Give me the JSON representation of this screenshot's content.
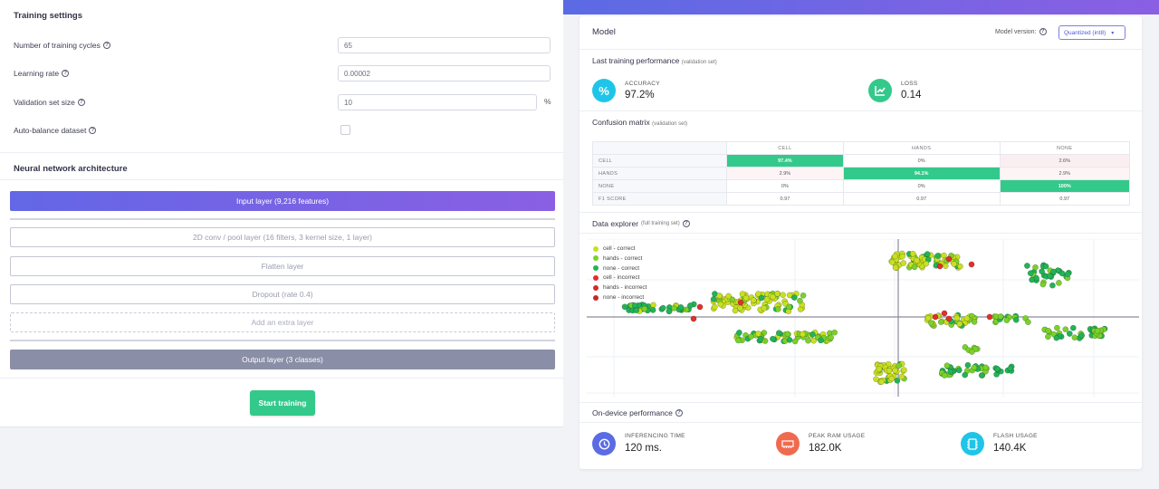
{
  "training": {
    "title": "Training settings",
    "fields": [
      {
        "label": "Number of training cycles",
        "value": "65"
      },
      {
        "label": "Learning rate",
        "value": "0.00002"
      },
      {
        "label": "Validation set size",
        "value": "10",
        "unit": "%"
      },
      {
        "label": "Auto-balance dataset",
        "checked": false
      }
    ],
    "help_glyph": "?"
  },
  "nn": {
    "title": "Neural network architecture",
    "input_layer": "Input layer (9,216 features)",
    "layers": [
      "2D conv / pool layer (16 filters, 3 kernel size, 1 layer)",
      "Flatten layer",
      "Dropout (rate 0.4)"
    ],
    "add_layer": "Add an extra layer",
    "output_layer": "Output layer (3 classes)",
    "start_button": "Start training"
  },
  "model": {
    "title": "Model",
    "version_label": "Model version:",
    "version_value": "Quantized (int8)",
    "last_perf_title": "Last training performance",
    "last_perf_note": "(validation set)",
    "accuracy": {
      "label": "ACCURACY",
      "value": "97.2%",
      "icon": "percent-icon"
    },
    "loss": {
      "label": "LOSS",
      "value": "0.14",
      "icon": "chart-line-icon"
    },
    "confusion": {
      "title": "Confusion matrix",
      "note": "(validation set)",
      "columns": [
        "CELL",
        "HANDS",
        "NONE"
      ],
      "rows": [
        {
          "label": "CELL",
          "values": [
            "97.4%",
            "0%",
            "2.6%"
          ]
        },
        {
          "label": "HANDS",
          "values": [
            "2.9%",
            "94.1%",
            "2.9%"
          ]
        },
        {
          "label": "NONE",
          "values": [
            "0%",
            "0%",
            "100%"
          ]
        },
        {
          "label": "F1 SCORE",
          "values": [
            "0.97",
            "0.97",
            "0.97"
          ]
        }
      ]
    },
    "explorer": {
      "title": "Data explorer",
      "note": "(full training set)",
      "legend": [
        {
          "label": "cell - correct",
          "color": "#c8e021"
        },
        {
          "label": "hands - correct",
          "color": "#7ad12a"
        },
        {
          "label": "none - correct",
          "color": "#22b356"
        },
        {
          "label": "cell - incorrect",
          "color": "#e0302e"
        },
        {
          "label": "hands - incorrect",
          "color": "#d42a2a"
        },
        {
          "label": "none - incorrect",
          "color": "#c52828"
        }
      ]
    },
    "ondevice": {
      "title": "On-device performance",
      "metrics": [
        {
          "label": "INFERENCING TIME",
          "value": "120 ms.",
          "color": "#5b6be4",
          "icon": "clock-icon"
        },
        {
          "label": "PEAK RAM USAGE",
          "value": "182.0K",
          "color": "#f06a4e",
          "icon": "ram-icon"
        },
        {
          "label": "FLASH USAGE",
          "value": "140.4K",
          "color": "#1fc5e8",
          "icon": "flash-chip-icon"
        }
      ]
    }
  },
  "colors": {
    "accent": "#5b6be4",
    "green": "#33c98b",
    "cyan": "#1fc5e8"
  }
}
